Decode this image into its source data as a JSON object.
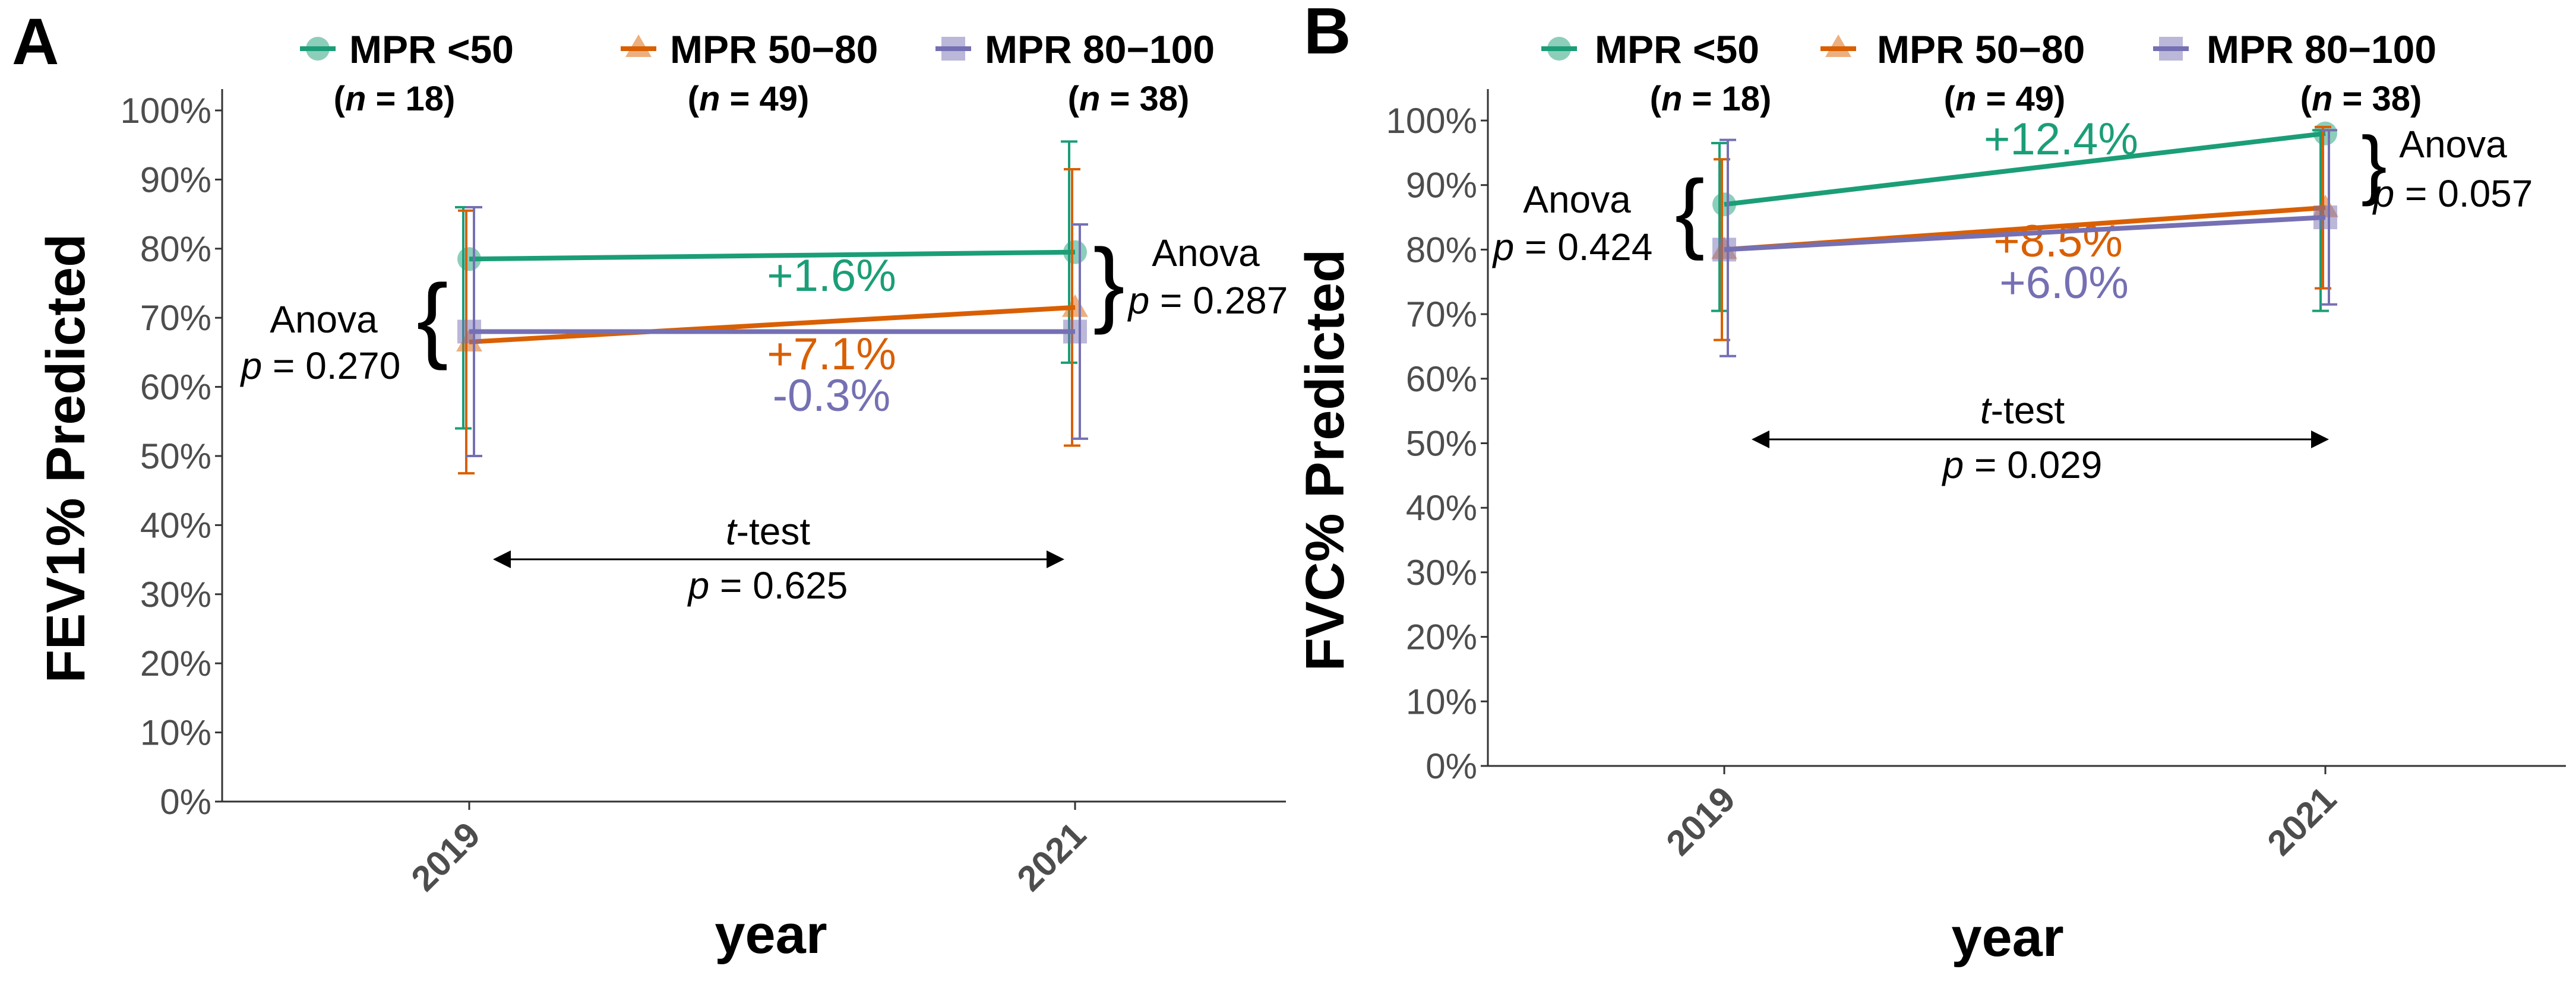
{
  "colors": {
    "mpr_lt50": "#1b9e77",
    "mpr_50_80": "#d95f02",
    "mpr_80_100": "#7570b3",
    "axis": "#333333",
    "tick_text": "#4d4d4d"
  },
  "legend": {
    "items": [
      {
        "label": "MPR <50",
        "n": "18",
        "icon": "circle-marker-icon"
      },
      {
        "label": "MPR 50−80",
        "n": "49",
        "icon": "triangle-marker-icon"
      },
      {
        "label": "MPR 80−100",
        "n": "38",
        "icon": "square-marker-icon"
      }
    ]
  },
  "chart_data": [
    {
      "panel": "A",
      "type": "line",
      "x": [
        "2019",
        "2021"
      ],
      "xlabel": "year",
      "ylabel": "FEV1% Predicted",
      "ylim": [
        0,
        100
      ],
      "yticks": [
        "0%",
        "10%",
        "20%",
        "30%",
        "40%",
        "50%",
        "60%",
        "70%",
        "80%",
        "90%",
        "100%"
      ],
      "series": [
        {
          "name": "MPR <50",
          "n": 18,
          "values": [
            78.5,
            79.5
          ],
          "error_low": [
            54,
            63.5
          ],
          "error_high": [
            86,
            95.5
          ],
          "change_label": "+1.6%"
        },
        {
          "name": "MPR 50−80",
          "n": 49,
          "values": [
            66.5,
            71.5
          ],
          "error_low": [
            47.5,
            51.5
          ],
          "error_high": [
            85.5,
            91.5
          ],
          "change_label": "+7.1%"
        },
        {
          "name": "MPR 80−100",
          "n": 38,
          "values": [
            68,
            68
          ],
          "error_low": [
            50,
            52.5
          ],
          "error_high": [
            86,
            83.5
          ],
          "change_label": "-0.3%"
        }
      ],
      "annotations": {
        "anova_left_label": "Anova",
        "anova_left_p": "p = 0.270",
        "anova_right_label": "Anova",
        "anova_right_p": "p = 0.287",
        "ttest_label": "t-test",
        "ttest_p": "p = 0.625"
      }
    },
    {
      "panel": "B",
      "type": "line",
      "x": [
        "2019",
        "2021"
      ],
      "xlabel": "year",
      "ylabel": "FVC% Predicted",
      "ylim": [
        0,
        100
      ],
      "yticks": [
        "0%",
        "10%",
        "20%",
        "30%",
        "40%",
        "50%",
        "60%",
        "70%",
        "80%",
        "90%",
        "100%"
      ],
      "series": [
        {
          "name": "MPR <50",
          "n": 18,
          "values": [
            87,
            98
          ],
          "error_low": [
            70.5,
            70.5
          ],
          "error_high": [
            96.5,
            98.5
          ],
          "change_label": "+12.4%"
        },
        {
          "name": "MPR 50−80",
          "n": 49,
          "values": [
            80,
            86.5
          ],
          "error_low": [
            66,
            74
          ],
          "error_high": [
            94,
            99
          ],
          "change_label": "+8.5%"
        },
        {
          "name": "MPR 80−100",
          "n": 38,
          "values": [
            80,
            85
          ],
          "error_low": [
            63.5,
            71.5
          ],
          "error_high": [
            97,
            98.5
          ],
          "change_label": "+6.0%"
        }
      ],
      "annotations": {
        "anova_left_label": "Anova",
        "anova_left_p": "p = 0.424",
        "anova_right_label": "Anova",
        "anova_right_p": "p = 0.057",
        "ttest_label": "t-test",
        "ttest_p": "p = 0.029"
      }
    }
  ]
}
